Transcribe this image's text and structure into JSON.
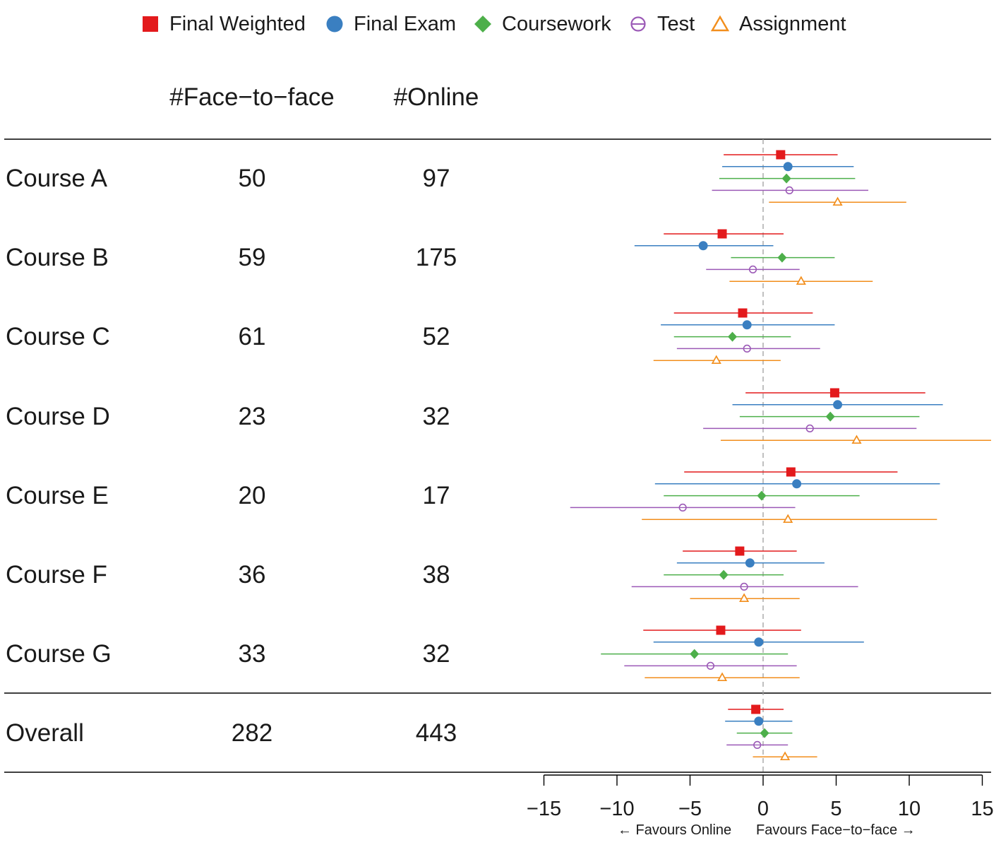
{
  "chart_data": {
    "type": "forest",
    "legend": [
      {
        "key": "fw",
        "label": "Final Weighted",
        "color": "#e31a1c",
        "marker": "square-filled"
      },
      {
        "key": "fe",
        "label": "Final Exam",
        "color": "#3a7fc1",
        "marker": "circle-filled"
      },
      {
        "key": "cw",
        "label": "Coursework",
        "color": "#4daf4a",
        "marker": "diamond-filled"
      },
      {
        "key": "ts",
        "label": "Test",
        "color": "#9b59b6",
        "marker": "circle-open"
      },
      {
        "key": "as",
        "label": "Assignment",
        "color": "#f28e1c",
        "marker": "triangle-open"
      }
    ],
    "columns": {
      "face_to_face": "#Face−to−face",
      "online": "#Online"
    },
    "rows": [
      {
        "label": "Course A",
        "face_to_face": "50",
        "online": "97",
        "estimates": [
          {
            "series": "fw",
            "est": 1.2,
            "lo": -2.7,
            "hi": 5.1
          },
          {
            "series": "fe",
            "est": 1.7,
            "lo": -2.8,
            "hi": 6.2
          },
          {
            "series": "cw",
            "est": 1.6,
            "lo": -3.0,
            "hi": 6.3
          },
          {
            "series": "ts",
            "est": 1.8,
            "lo": -3.5,
            "hi": 7.2
          },
          {
            "series": "as",
            "est": 5.1,
            "lo": 0.4,
            "hi": 9.8
          }
        ]
      },
      {
        "label": "Course B",
        "face_to_face": "59",
        "online": "175",
        "estimates": [
          {
            "series": "fw",
            "est": -2.8,
            "lo": -6.8,
            "hi": 1.4
          },
          {
            "series": "fe",
            "est": -4.1,
            "lo": -8.8,
            "hi": 0.7
          },
          {
            "series": "cw",
            "est": 1.3,
            "lo": -2.2,
            "hi": 4.9
          },
          {
            "series": "ts",
            "est": -0.7,
            "lo": -3.9,
            "hi": 2.5
          },
          {
            "series": "as",
            "est": 2.6,
            "lo": -2.3,
            "hi": 7.5
          }
        ]
      },
      {
        "label": "Course C",
        "face_to_face": "61",
        "online": "52",
        "estimates": [
          {
            "series": "fw",
            "est": -1.4,
            "lo": -6.1,
            "hi": 3.4
          },
          {
            "series": "fe",
            "est": -1.1,
            "lo": -7.0,
            "hi": 4.9
          },
          {
            "series": "cw",
            "est": -2.1,
            "lo": -6.1,
            "hi": 1.9
          },
          {
            "series": "ts",
            "est": -1.1,
            "lo": -5.9,
            "hi": 3.9
          },
          {
            "series": "as",
            "est": -3.2,
            "lo": -7.5,
            "hi": 1.2
          }
        ]
      },
      {
        "label": "Course D",
        "face_to_face": "23",
        "online": "32",
        "estimates": [
          {
            "series": "fw",
            "est": 4.9,
            "lo": -1.2,
            "hi": 11.1
          },
          {
            "series": "fe",
            "est": 5.1,
            "lo": -2.1,
            "hi": 12.3
          },
          {
            "series": "cw",
            "est": 4.6,
            "lo": -1.6,
            "hi": 10.7
          },
          {
            "series": "ts",
            "est": 3.2,
            "lo": -4.1,
            "hi": 10.5
          },
          {
            "series": "as",
            "est": 6.4,
            "lo": -2.9,
            "hi": 16.0
          }
        ]
      },
      {
        "label": "Course E",
        "face_to_face": "20",
        "online": "17",
        "estimates": [
          {
            "series": "fw",
            "est": 1.9,
            "lo": -5.4,
            "hi": 9.2
          },
          {
            "series": "fe",
            "est": 2.3,
            "lo": -7.4,
            "hi": 12.1
          },
          {
            "series": "cw",
            "est": -0.1,
            "lo": -6.8,
            "hi": 6.6
          },
          {
            "series": "ts",
            "est": -5.5,
            "lo": -13.2,
            "hi": 2.2
          },
          {
            "series": "as",
            "est": 1.7,
            "lo": -8.3,
            "hi": 11.9
          }
        ]
      },
      {
        "label": "Course F",
        "face_to_face": "36",
        "online": "38",
        "estimates": [
          {
            "series": "fw",
            "est": -1.6,
            "lo": -5.5,
            "hi": 2.3
          },
          {
            "series": "fe",
            "est": -0.9,
            "lo": -5.9,
            "hi": 4.2
          },
          {
            "series": "cw",
            "est": -2.7,
            "lo": -6.8,
            "hi": 1.4
          },
          {
            "series": "ts",
            "est": -1.3,
            "lo": -9.0,
            "hi": 6.5
          },
          {
            "series": "as",
            "est": -1.3,
            "lo": -5.0,
            "hi": 2.5
          }
        ]
      },
      {
        "label": "Course G",
        "face_to_face": "33",
        "online": "32",
        "estimates": [
          {
            "series": "fw",
            "est": -2.9,
            "lo": -8.2,
            "hi": 2.6
          },
          {
            "series": "fe",
            "est": -0.3,
            "lo": -7.5,
            "hi": 6.9
          },
          {
            "series": "cw",
            "est": -4.7,
            "lo": -11.1,
            "hi": 1.7
          },
          {
            "series": "ts",
            "est": -3.6,
            "lo": -9.5,
            "hi": 2.3
          },
          {
            "series": "as",
            "est": -2.8,
            "lo": -8.1,
            "hi": 2.5
          }
        ]
      },
      {
        "label": "Overall",
        "face_to_face": "282",
        "online": "443",
        "estimates": [
          {
            "series": "fw",
            "est": -0.5,
            "lo": -2.4,
            "hi": 1.4
          },
          {
            "series": "fe",
            "est": -0.3,
            "lo": -2.6,
            "hi": 2.0
          },
          {
            "series": "cw",
            "est": 0.1,
            "lo": -1.8,
            "hi": 2.0
          },
          {
            "series": "ts",
            "est": -0.4,
            "lo": -2.5,
            "hi": 1.7
          },
          {
            "series": "as",
            "est": 1.5,
            "lo": -0.7,
            "hi": 3.7
          }
        ]
      }
    ],
    "x_axis": {
      "ticks": [
        "−15",
        "−10",
        "−5",
        "0",
        "5",
        "10",
        "15"
      ],
      "tick_values": [
        -15,
        -10,
        -5,
        0,
        5,
        10,
        15
      ],
      "range": [
        -15,
        15
      ]
    },
    "reference_line": 0,
    "annotations": {
      "left": "← Favours Online",
      "right": "Favours Face−to−face →"
    }
  }
}
